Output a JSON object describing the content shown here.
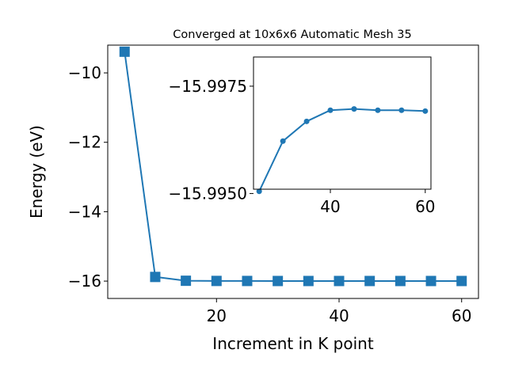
{
  "chart_data": [
    {
      "id": "main",
      "type": "line",
      "title": "Converged at 10x6x6 Automatic Mesh 35",
      "xlabel": "Increment in K point",
      "ylabel": "Energy (eV)",
      "xlim": [
        2.25,
        62.75
      ],
      "ylim": [
        -16.5,
        -9.2
      ],
      "xticks": [
        20,
        40,
        60
      ],
      "xtick_labels": [
        "20",
        "40",
        "60"
      ],
      "yticks": [
        -16,
        -14,
        -12,
        -10
      ],
      "ytick_labels": [
        "−16",
        "−14",
        "−12",
        "−10"
      ],
      "marker": "square",
      "color": "#1f77b4",
      "x": [
        5,
        10,
        15,
        20,
        25,
        30,
        35,
        40,
        45,
        50,
        55,
        60
      ],
      "y": [
        -9.39,
        -15.88,
        -15.99,
        -15.995,
        -15.996,
        -15.997,
        -15.997,
        -15.997,
        -15.997,
        -15.997,
        -15.997,
        -15.997
      ]
    },
    {
      "id": "inset",
      "type": "line",
      "xlim": [
        23.8,
        61.2
      ],
      "ylim": [
        -15.9951,
        -15.99818
      ],
      "yaxis_inverted": true,
      "xticks": [
        40,
        60
      ],
      "xtick_labels": [
        "40",
        "60"
      ],
      "yticks": [
        -15.9975,
        -15.995
      ],
      "ytick_labels": [
        "−15.9975",
        "−15.9950"
      ],
      "marker": "circle",
      "color": "#1f77b4",
      "x": [
        25,
        30,
        35,
        40,
        45,
        50,
        55,
        60
      ],
      "y": [
        -15.99505,
        -15.99622,
        -15.99668,
        -15.99694,
        -15.99697,
        -15.99694,
        -15.99694,
        -15.99692
      ]
    }
  ]
}
